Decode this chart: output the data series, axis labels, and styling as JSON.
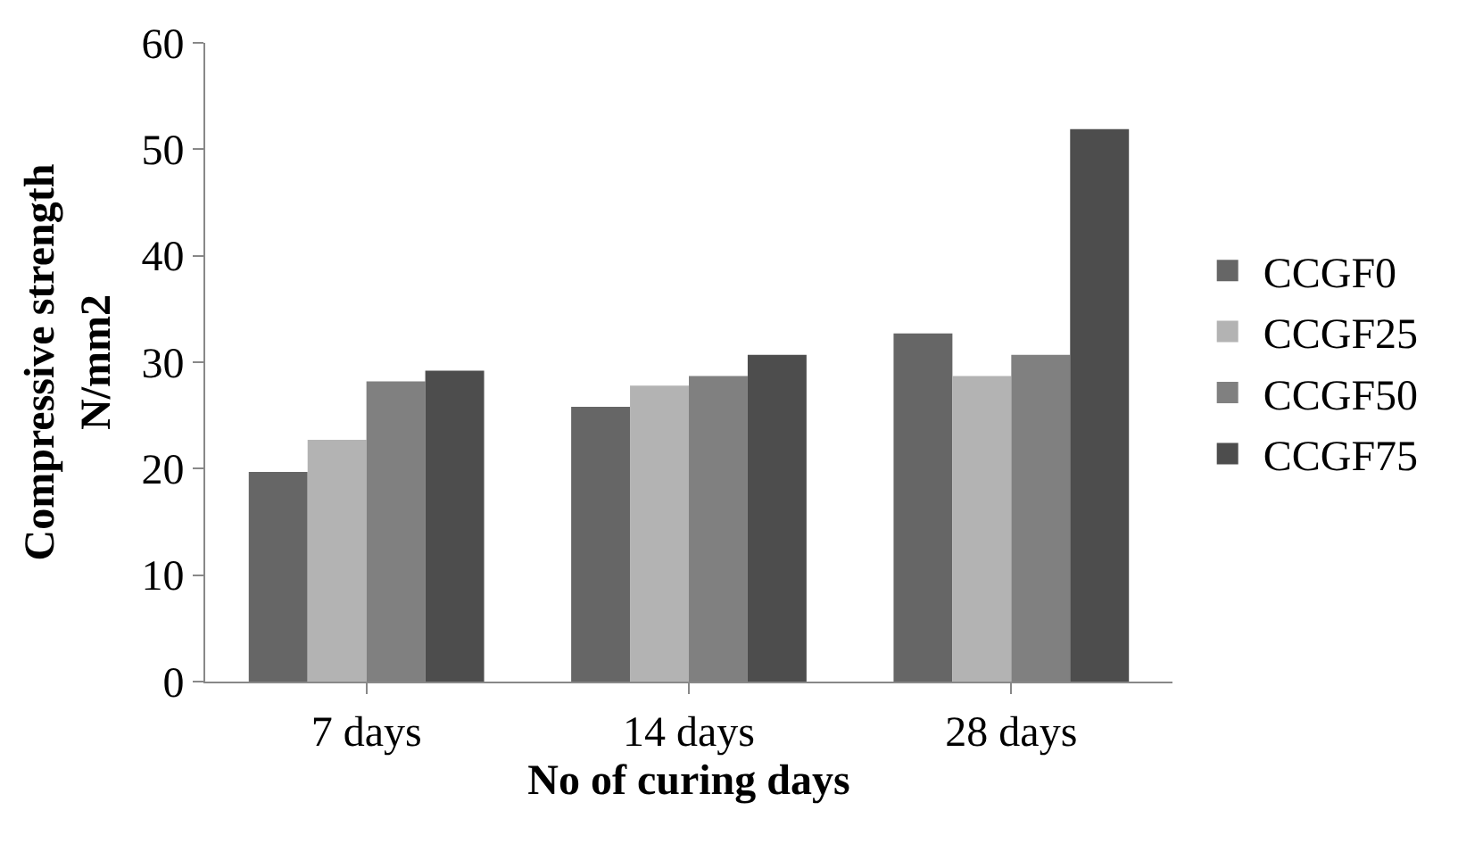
{
  "chart_data": {
    "type": "bar",
    "xlabel": "No of curing days",
    "ylabel": "Compressive strength\nN/mm2",
    "categories": [
      "7 days",
      "14 days",
      "28 days"
    ],
    "series": [
      {
        "name": "CCGF0",
        "color": "#666666",
        "values": [
          19.7,
          25.8,
          32.7
        ]
      },
      {
        "name": "CCGF25",
        "color": "#b3b3b3",
        "values": [
          22.7,
          27.8,
          28.7
        ]
      },
      {
        "name": "CCGF50",
        "color": "#808080",
        "values": [
          28.2,
          28.7,
          30.7
        ]
      },
      {
        "name": "CCGF75",
        "color": "#4d4d4d",
        "values": [
          29.2,
          30.7,
          51.9
        ]
      }
    ],
    "ylim": [
      0,
      60
    ],
    "yticks": [
      0,
      10,
      20,
      30,
      40,
      50,
      60
    ],
    "legend": "right"
  }
}
